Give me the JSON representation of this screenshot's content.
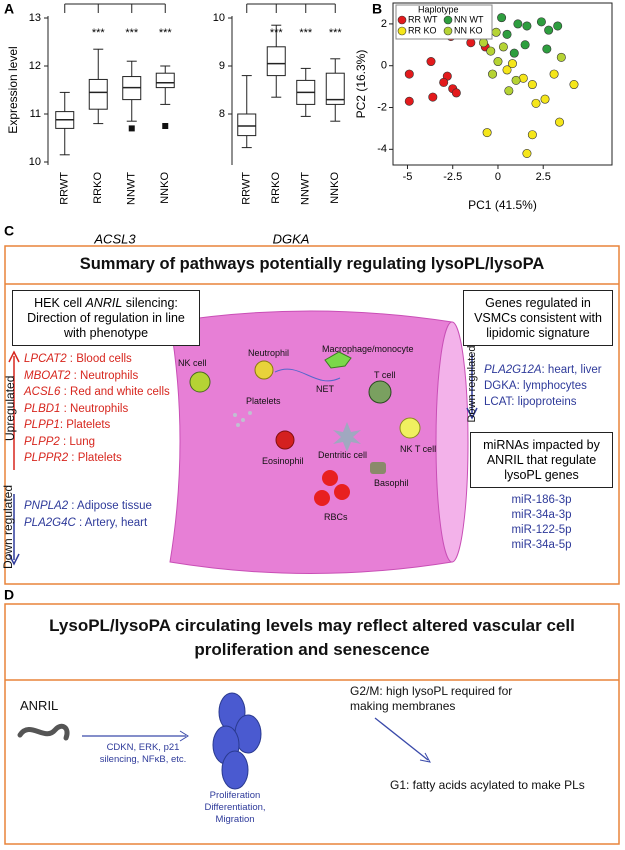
{
  "panel_labels": [
    "A",
    "B",
    "C",
    "D"
  ],
  "chart_data": [
    {
      "type": "box",
      "title": "ACSL3",
      "ylabel": "Expression level",
      "categories": [
        "RRWT",
        "RRKO",
        "NNWT",
        "NNKO"
      ],
      "boxes": [
        {
          "min": 10.15,
          "q1": 10.7,
          "median": 10.88,
          "q3": 11.05,
          "max": 11.45,
          "outliers": []
        },
        {
          "min": 10.8,
          "q1": 11.1,
          "median": 11.45,
          "q3": 11.72,
          "max": 12.35,
          "outliers": []
        },
        {
          "min": 10.85,
          "q1": 11.3,
          "median": 11.55,
          "q3": 11.78,
          "max": 12.1,
          "outliers": [
            10.7
          ]
        },
        {
          "min": 11.2,
          "q1": 11.55,
          "median": 11.65,
          "q3": 11.85,
          "max": 12.0,
          "outliers": [
            10.75
          ]
        }
      ],
      "significance": [
        null,
        "***",
        "***",
        "***"
      ],
      "ylim": [
        10,
        13
      ],
      "yticks": [
        10,
        11,
        12,
        13
      ]
    },
    {
      "type": "box",
      "title": "DGKA",
      "categories": [
        "RRWT",
        "RRKO",
        "NNWT",
        "NNKO"
      ],
      "boxes": [
        {
          "min": 7.3,
          "q1": 7.55,
          "median": 7.75,
          "q3": 8.0,
          "max": 8.8,
          "outliers": []
        },
        {
          "min": 8.35,
          "q1": 8.8,
          "median": 9.05,
          "q3": 9.4,
          "max": 9.85,
          "outliers": []
        },
        {
          "min": 7.95,
          "q1": 8.2,
          "median": 8.45,
          "q3": 8.7,
          "max": 8.95,
          "outliers": []
        },
        {
          "min": 7.85,
          "q1": 8.2,
          "median": 8.3,
          "q3": 8.85,
          "max": 9.15,
          "outliers": []
        }
      ],
      "significance": [
        null,
        "***",
        "***",
        "***"
      ],
      "ylim": [
        7,
        10
      ],
      "yticks": [
        8,
        9,
        10
      ]
    },
    {
      "type": "scatter",
      "xlabel": "PC1 (41.5%)",
      "ylabel": "PC2 (16.3%)",
      "legend_title": "Haplotype",
      "series": [
        {
          "name": "RR WT",
          "color": "#e31a1c",
          "x": [
            -4.9,
            -4.9,
            -3.7,
            -3.6,
            -2.8,
            -3.0,
            -2.5,
            -2.3,
            -1.5,
            -0.7,
            -2.6,
            -1.2
          ],
          "values": [
            -0.4,
            -1.7,
            0.2,
            -1.5,
            -0.5,
            -0.8,
            -1.1,
            -1.3,
            1.1,
            0.9,
            1.4,
            1.8
          ]
        },
        {
          "name": "NN WT",
          "color": "#2e9e3f",
          "x": [
            0.2,
            1.1,
            1.6,
            2.4,
            2.8,
            3.3,
            1.5,
            2.7,
            0.9,
            0.5
          ],
          "values": [
            2.3,
            2.0,
            1.9,
            2.1,
            1.7,
            1.9,
            1.0,
            0.8,
            0.6,
            1.5
          ]
        },
        {
          "name": "RR KO",
          "color": "#f5e61a",
          "x": [
            0.5,
            0.8,
            1.4,
            1.9,
            2.1,
            2.6,
            3.1,
            3.4,
            4.2,
            1.6,
            -0.6,
            1.9
          ],
          "values": [
            -0.2,
            0.1,
            -0.6,
            -0.9,
            -1.8,
            -1.6,
            -0.4,
            -2.7,
            -0.9,
            -4.2,
            -3.2,
            -3.3
          ]
        },
        {
          "name": "NN KO",
          "color": "#b5d334",
          "x": [
            -0.8,
            -0.4,
            -0.1,
            0.3,
            -0.3,
            0.6,
            1.0,
            3.5,
            0.0
          ],
          "values": [
            1.1,
            0.7,
            1.6,
            0.9,
            -0.4,
            -1.2,
            -0.7,
            0.4,
            0.2
          ]
        }
      ],
      "xlim": [
        -5.8,
        6.3
      ],
      "ylim": [
        -4.75,
        3
      ],
      "xticks": [
        -5,
        -2.5,
        0,
        2.5
      ],
      "yticks": [
        2,
        0,
        -2,
        -4
      ]
    }
  ],
  "panel_c": {
    "title": "Summary of pathways potentially regulating lysoPL/lysoPA",
    "left_box": [
      "HEK cell ",
      "ANRIL",
      " silencing: Direction of regulation in line with phenotype"
    ],
    "upregulated_label": "Upregulated",
    "up_items": [
      {
        "gene": "LPCAT2",
        "text": " : Blood cells"
      },
      {
        "gene": "MBOAT2",
        "text": " : Neutrophils"
      },
      {
        "gene": "ACSL6",
        "text": " : Red and white cells"
      },
      {
        "gene": "PLBD1",
        "text": " : Neutrophils"
      },
      {
        "gene": "PLPP1",
        "text": ": Platelets"
      },
      {
        "gene": "PLPP2",
        "text": " : Lung"
      },
      {
        "gene": "PLPPR2",
        "text": " : Platelets"
      }
    ],
    "downregulated_label": "Down regulated",
    "down_items": [
      {
        "gene": "PNPLA2",
        "text": " : Adipose tissue"
      },
      {
        "gene": "PLA2G4C",
        "text": " : Artery, heart"
      }
    ],
    "cells": [
      "Neutrophil",
      "Macrophage/monocyte",
      "NK cell",
      "Platelets",
      "NET",
      "T cell",
      "Dentritic cell",
      "NK T cell",
      "Eosinophil",
      "Basophil",
      "RBCs"
    ],
    "right_box": "Genes regulated in VSMCs consistent with lipidomic signature",
    "right_down_label": "Down regulated",
    "right_items": [
      {
        "gene": "PLA2G12A",
        "text": ": heart, liver"
      },
      {
        "gene": "",
        "text": "DGKA: lymphocytes"
      },
      {
        "gene": "",
        "text": "LCAT: lipoproteins"
      }
    ],
    "mirna_box": "miRNAs impacted by ANRIL that regulate lysoPL genes",
    "mirnas": [
      "miR-186-3p",
      "miR-34a-3p",
      "miR-122-5p",
      "miR-34a-5p"
    ]
  },
  "panel_d": {
    "title": "LysoPL/lysoPA circulating levels may reflect altered vascular cell proliferation and senescence",
    "anril": "ANRIL",
    "arrow_label": "CDKN, ERK, p21 silencing, NFκB, etc.",
    "cell_label": "Proliferation Differentiation, Migration",
    "g2m": "G2/M: high lysoPL required for making membranes",
    "g1": "G1: fatty acids acylated to make PLs"
  }
}
